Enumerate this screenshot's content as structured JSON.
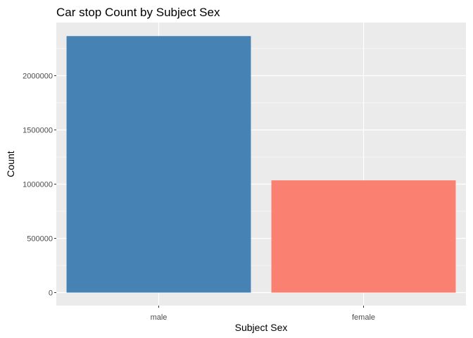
{
  "chart_data": {
    "type": "bar",
    "title": "Car stop Count by Subject Sex",
    "xlabel": "Subject Sex",
    "ylabel": "Count",
    "categories": [
      "male",
      "female"
    ],
    "values": [
      2365000,
      1035000
    ],
    "colors": [
      "#4682b4",
      "#fa8072"
    ],
    "ylim": [
      0,
      2500000
    ],
    "yticks": [
      0,
      500000,
      1000000,
      1500000,
      2000000
    ],
    "ytick_labels": [
      "0",
      "500000",
      "1000000",
      "1500000",
      "2000000"
    ],
    "grid": true,
    "legend": "none"
  },
  "colors": {
    "panel_background": "#ebebeb",
    "grid": "#ffffff"
  }
}
